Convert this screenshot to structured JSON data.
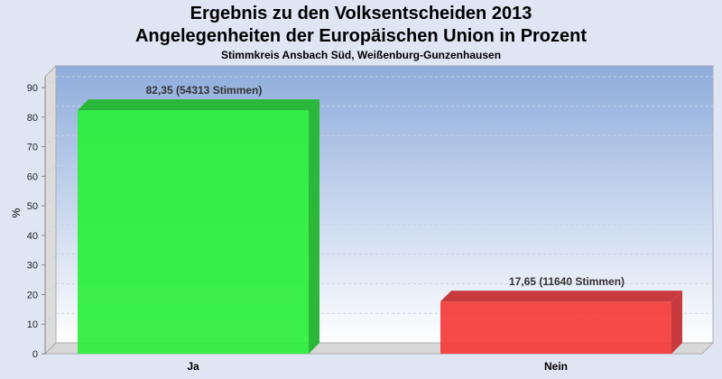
{
  "chart_data": {
    "type": "bar",
    "title": "Ergebnis zu den Volksentscheiden 2013",
    "subtitle": "Angelegenheiten der Europäischen Union in Prozent",
    "subtitle2": "Stimmkreis Ansbach Süd, Weißenburg-Gunzenhausen",
    "xlabel": "",
    "ylabel": "%",
    "ylim": [
      0,
      90
    ],
    "yticks": [
      0,
      10,
      20,
      30,
      40,
      50,
      60,
      70,
      80,
      90
    ],
    "grid": true,
    "categories": [
      "Ja",
      "Nein"
    ],
    "values": [
      82.35,
      17.65
    ],
    "data_labels": [
      "82,35 (54313 Stimmen)",
      "17,65 (11640 Stimmen)"
    ],
    "colors": [
      "#2af03a",
      "#f53a3a"
    ],
    "side_colors": [
      "#2bb83a",
      "#c83a3e"
    ]
  }
}
